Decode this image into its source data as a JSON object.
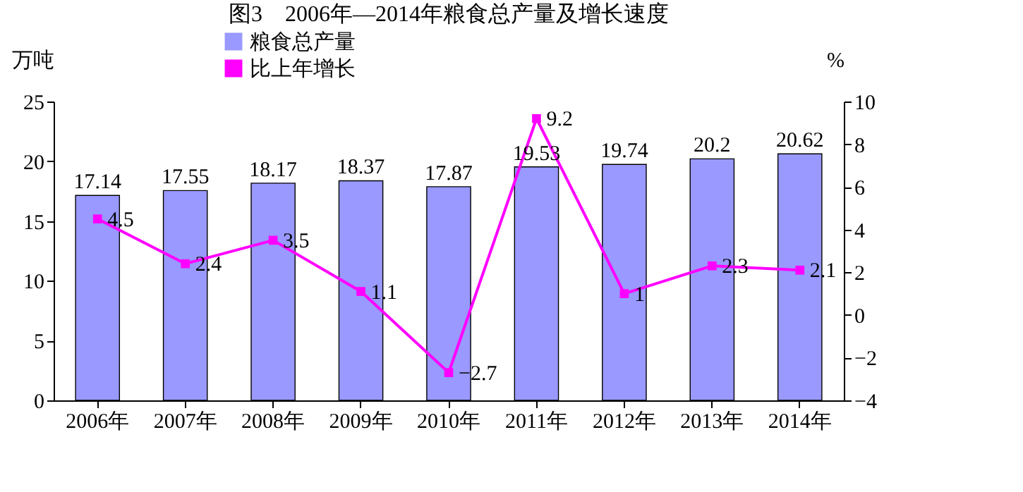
{
  "chart_data": {
    "type": "bar",
    "title": "图3　2006年—2014年粮食总产量及增长速度",
    "ylabel": "万吨",
    "y2label": "%",
    "categories": [
      "2006年",
      "2007年",
      "2008年",
      "2009年",
      "2010年",
      "2011年",
      "2012年",
      "2013年",
      "2014年"
    ],
    "series": [
      {
        "name": "粮食总产量",
        "color": "#9999ff",
        "values": [
          17.14,
          17.55,
          18.17,
          18.37,
          17.87,
          19.53,
          19.74,
          20.2,
          20.62
        ]
      },
      {
        "name": "比上年增长",
        "type": "line",
        "axis": "y2",
        "color": "#ff00ff",
        "marker": "square",
        "values": [
          4.5,
          2.4,
          3.5,
          1.1,
          -2.7,
          9.2,
          1,
          2.3,
          2.1
        ]
      }
    ],
    "ylim": [
      0,
      25
    ],
    "yticks": [
      0,
      5,
      10,
      15,
      20,
      25
    ],
    "y2lim": [
      -4,
      10
    ],
    "y2ticks": [
      -4,
      -2,
      0,
      2,
      4,
      6,
      8,
      10
    ],
    "data_labels": true,
    "grid": false,
    "legend": "top"
  }
}
